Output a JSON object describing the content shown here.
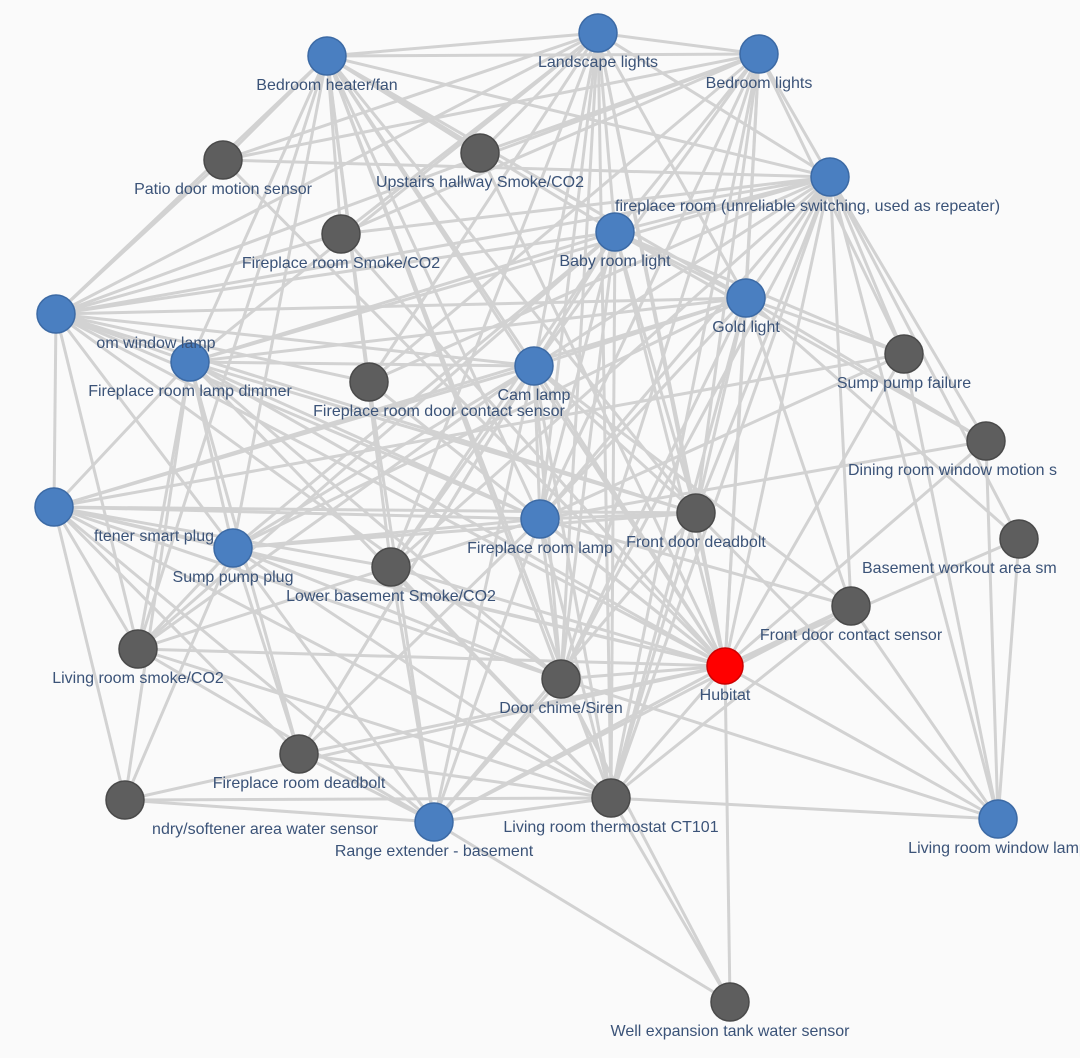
{
  "colors": {
    "repeater": "#4a7fc1",
    "device": "#5e5e5e",
    "hub": "#ff0000",
    "edge": "#d2d2d2",
    "label": "#3b5378"
  },
  "nodes": [
    {
      "id": 0,
      "label": "Bedroom heater/fan",
      "type": "repeater"
    },
    {
      "id": 1,
      "label": "Landscape lights",
      "type": "repeater"
    },
    {
      "id": 2,
      "label": "Bedroom lights",
      "type": "repeater"
    },
    {
      "id": 3,
      "label": "Patio door motion sensor",
      "type": "device"
    },
    {
      "id": 4,
      "label": "Upstairs hallway Smoke/CO2",
      "type": "device"
    },
    {
      "id": 5,
      "label": "fireplace room (unreliable switching, used as repeater)",
      "type": "repeater"
    },
    {
      "id": 6,
      "label": "Fireplace room Smoke/CO2",
      "type": "device"
    },
    {
      "id": 7,
      "label": "Baby room light",
      "type": "repeater"
    },
    {
      "id": 8,
      "label": "om window lamp",
      "type": "repeater"
    },
    {
      "id": 9,
      "label": "Gold light",
      "type": "repeater"
    },
    {
      "id": 10,
      "label": "Sump pump failure",
      "type": "device"
    },
    {
      "id": 11,
      "label": "Fireplace room lamp dimmer",
      "type": "repeater"
    },
    {
      "id": 12,
      "label": "Fireplace room door contact sensor",
      "type": "device"
    },
    {
      "id": 13,
      "label": "Cam lamp",
      "type": "repeater"
    },
    {
      "id": 14,
      "label": "Dining room window motion s",
      "type": "device"
    },
    {
      "id": 15,
      "label": "ftener smart plug",
      "type": "repeater"
    },
    {
      "id": 16,
      "label": "Fireplace room lamp",
      "type": "repeater"
    },
    {
      "id": 17,
      "label": "Front door deadbolt",
      "type": "device"
    },
    {
      "id": 18,
      "label": "Basement workout area sm",
      "type": "device"
    },
    {
      "id": 19,
      "label": "Sump pump plug",
      "type": "repeater"
    },
    {
      "id": 20,
      "label": "Lower basement Smoke/CO2",
      "type": "device"
    },
    {
      "id": 21,
      "label": "Front door contact sensor",
      "type": "device"
    },
    {
      "id": 22,
      "label": "Living room smoke/CO2",
      "type": "device"
    },
    {
      "id": 23,
      "label": "Hubitat",
      "type": "hub"
    },
    {
      "id": 24,
      "label": "Door chime/Siren",
      "type": "device"
    },
    {
      "id": 25,
      "label": "Fireplace room deadbolt",
      "type": "device"
    },
    {
      "id": 26,
      "label": "ndry/softener area water sensor",
      "type": "device"
    },
    {
      "id": 27,
      "label": "Range extender - basement",
      "type": "repeater"
    },
    {
      "id": 28,
      "label": "Living room thermostat CT101",
      "type": "device"
    },
    {
      "id": 29,
      "label": "Living room window lamp",
      "type": "repeater"
    },
    {
      "id": 30,
      "label": "Well expansion tank water sensor",
      "type": "device"
    }
  ],
  "links": {
    "0": [
      1,
      2,
      3,
      4,
      5,
      6,
      7,
      8,
      9,
      11,
      12,
      13,
      16,
      17,
      19,
      20,
      22,
      23,
      24,
      28
    ],
    "1": [
      2,
      3,
      4,
      5,
      6,
      7,
      8,
      9,
      11,
      12,
      13,
      16,
      17,
      20,
      23,
      24,
      28
    ],
    "2": [
      3,
      4,
      5,
      6,
      7,
      8,
      9,
      10,
      12,
      13,
      16,
      17,
      23,
      24,
      28
    ],
    "5": [
      3,
      6,
      7,
      8,
      9,
      10,
      11,
      12,
      13,
      14,
      16,
      17,
      18,
      20,
      21,
      23,
      24,
      28
    ],
    "7": [
      8,
      9,
      10,
      11,
      13,
      14,
      16,
      17,
      19,
      20,
      22,
      23,
      24,
      25,
      28
    ],
    "8": [
      3,
      6,
      9,
      11,
      12,
      13,
      15,
      16,
      17,
      19,
      22,
      23,
      24
    ],
    "9": [
      10,
      11,
      13,
      14,
      15,
      16,
      17,
      18,
      19,
      21,
      23,
      24,
      28
    ],
    "11": [
      13,
      15,
      16,
      17,
      19,
      22,
      23,
      24,
      25,
      26,
      28
    ],
    "13": [
      15,
      16,
      17,
      19,
      20,
      21,
      22,
      23,
      24,
      25,
      27,
      28
    ],
    "15": [
      10,
      16,
      17,
      19,
      20,
      22,
      23,
      24,
      25,
      26,
      27,
      28
    ],
    "16": [
      10,
      14,
      17,
      19,
      20,
      21,
      22,
      23,
      24,
      25,
      27,
      28
    ],
    "19": [
      17,
      22,
      23,
      24,
      25,
      26,
      27,
      28
    ],
    "27": [
      12,
      17,
      20,
      21,
      22,
      23,
      24,
      25,
      26,
      28,
      30
    ],
    "29": [
      5,
      10,
      14,
      17,
      18,
      21,
      23,
      24,
      28
    ],
    "23": [
      3,
      4,
      6,
      10,
      12,
      14,
      17,
      18,
      20,
      21,
      22,
      24,
      25,
      26,
      28,
      30
    ],
    "28": [
      17,
      20,
      21,
      22,
      25,
      26,
      30
    ],
    "24": [
      30
    ]
  }
}
